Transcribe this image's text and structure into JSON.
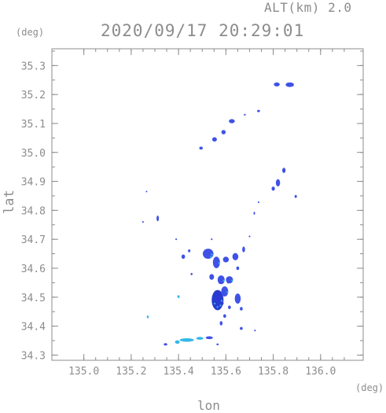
{
  "header": {
    "altitude_label": "ALT(km) 2.0",
    "timestamp": "2020/09/17 20:29:01"
  },
  "chart_data": {
    "type": "scatter",
    "title": "2020/09/17 20:29:01",
    "subtitle": "ALT(km) 2.0",
    "xlabel": "lon",
    "ylabel": "lat",
    "x_unit": "(deg)",
    "y_unit": "(deg)",
    "xlim": [
      134.865,
      136.18
    ],
    "ylim": [
      34.282,
      35.358
    ],
    "x_ticks": [
      135.0,
      135.2,
      135.4,
      135.6,
      135.8,
      136.0
    ],
    "x_tick_labels": [
      "135.0",
      "135.2",
      "135.4",
      "135.6",
      "135.8",
      "136.0"
    ],
    "y_ticks": [
      34.3,
      34.4,
      34.5,
      34.6,
      34.7,
      34.8,
      34.9,
      35.0,
      35.1,
      35.2,
      35.3
    ],
    "y_tick_labels": [
      "34.3",
      "34.4",
      "34.5",
      "34.6",
      "34.7",
      "34.8",
      "34.9",
      "35.0",
      "35.1",
      "35.2",
      "35.3"
    ],
    "grid": false,
    "colors": {
      "frame": "#8c8c8c",
      "echo_blue": "#3f52e6",
      "echo_dark": "#2a3ad0",
      "echo_cyan": "#35b8e8"
    },
    "echoes": [
      {
        "lon": 135.815,
        "lat": 35.235,
        "w": 0.025,
        "h": 0.014,
        "color": "blue"
      },
      {
        "lon": 135.87,
        "lat": 35.234,
        "w": 0.035,
        "h": 0.016,
        "color": "blue"
      },
      {
        "lon": 135.738,
        "lat": 35.143,
        "w": 0.012,
        "h": 0.008,
        "color": "blue"
      },
      {
        "lon": 135.68,
        "lat": 35.13,
        "w": 0.008,
        "h": 0.006,
        "color": "blue"
      },
      {
        "lon": 135.625,
        "lat": 35.108,
        "w": 0.025,
        "h": 0.014,
        "color": "blue"
      },
      {
        "lon": 135.59,
        "lat": 35.07,
        "w": 0.018,
        "h": 0.015,
        "color": "blue"
      },
      {
        "lon": 135.552,
        "lat": 35.045,
        "w": 0.02,
        "h": 0.015,
        "color": "blue"
      },
      {
        "lon": 135.495,
        "lat": 35.015,
        "w": 0.015,
        "h": 0.01,
        "color": "blue"
      },
      {
        "lon": 135.845,
        "lat": 34.938,
        "w": 0.014,
        "h": 0.018,
        "color": "blue"
      },
      {
        "lon": 135.82,
        "lat": 34.895,
        "w": 0.018,
        "h": 0.025,
        "color": "blue"
      },
      {
        "lon": 135.8,
        "lat": 34.875,
        "w": 0.014,
        "h": 0.014,
        "color": "blue"
      },
      {
        "lon": 135.895,
        "lat": 34.848,
        "w": 0.01,
        "h": 0.01,
        "color": "blue"
      },
      {
        "lon": 135.738,
        "lat": 34.828,
        "w": 0.006,
        "h": 0.006,
        "color": "blue"
      },
      {
        "lon": 135.72,
        "lat": 34.79,
        "w": 0.006,
        "h": 0.01,
        "color": "blue"
      },
      {
        "lon": 135.312,
        "lat": 34.772,
        "w": 0.01,
        "h": 0.02,
        "color": "blue"
      },
      {
        "lon": 135.25,
        "lat": 34.76,
        "w": 0.006,
        "h": 0.006,
        "color": "blue"
      },
      {
        "lon": 135.265,
        "lat": 34.865,
        "w": 0.004,
        "h": 0.004,
        "color": "blue"
      },
      {
        "lon": 135.39,
        "lat": 34.7,
        "w": 0.006,
        "h": 0.006,
        "color": "blue"
      },
      {
        "lon": 135.54,
        "lat": 34.7,
        "w": 0.006,
        "h": 0.006,
        "color": "blue"
      },
      {
        "lon": 135.7,
        "lat": 34.71,
        "w": 0.006,
        "h": 0.006,
        "color": "blue"
      },
      {
        "lon": 135.42,
        "lat": 34.64,
        "w": 0.015,
        "h": 0.015,
        "color": "blue"
      },
      {
        "lon": 135.445,
        "lat": 34.66,
        "w": 0.01,
        "h": 0.01,
        "color": "blue"
      },
      {
        "lon": 135.525,
        "lat": 34.65,
        "w": 0.045,
        "h": 0.035,
        "color": "blue"
      },
      {
        "lon": 135.56,
        "lat": 34.62,
        "w": 0.03,
        "h": 0.04,
        "color": "blue"
      },
      {
        "lon": 135.6,
        "lat": 34.63,
        "w": 0.025,
        "h": 0.02,
        "color": "blue"
      },
      {
        "lon": 135.64,
        "lat": 34.64,
        "w": 0.025,
        "h": 0.025,
        "color": "blue"
      },
      {
        "lon": 135.675,
        "lat": 34.665,
        "w": 0.012,
        "h": 0.02,
        "color": "blue"
      },
      {
        "lon": 135.58,
        "lat": 34.56,
        "w": 0.03,
        "h": 0.03,
        "color": "blue"
      },
      {
        "lon": 135.615,
        "lat": 34.56,
        "w": 0.03,
        "h": 0.025,
        "color": "blue"
      },
      {
        "lon": 135.54,
        "lat": 34.57,
        "w": 0.02,
        "h": 0.02,
        "color": "blue"
      },
      {
        "lon": 135.65,
        "lat": 34.6,
        "w": 0.012,
        "h": 0.012,
        "color": "blue"
      },
      {
        "lon": 135.455,
        "lat": 34.58,
        "w": 0.008,
        "h": 0.008,
        "color": "blue"
      },
      {
        "lon": 135.565,
        "lat": 34.49,
        "w": 0.05,
        "h": 0.07,
        "color": "dark"
      },
      {
        "lon": 135.595,
        "lat": 34.52,
        "w": 0.03,
        "h": 0.035,
        "color": "blue"
      },
      {
        "lon": 135.65,
        "lat": 34.495,
        "w": 0.025,
        "h": 0.035,
        "color": "blue"
      },
      {
        "lon": 135.665,
        "lat": 34.46,
        "w": 0.012,
        "h": 0.012,
        "color": "blue"
      },
      {
        "lon": 135.595,
        "lat": 34.435,
        "w": 0.012,
        "h": 0.012,
        "color": "blue"
      },
      {
        "lon": 135.58,
        "lat": 34.41,
        "w": 0.012,
        "h": 0.015,
        "color": "blue"
      },
      {
        "lon": 135.615,
        "lat": 34.465,
        "w": 0.012,
        "h": 0.012,
        "color": "blue"
      },
      {
        "lon": 135.665,
        "lat": 34.392,
        "w": 0.012,
        "h": 0.01,
        "color": "blue"
      },
      {
        "lon": 135.723,
        "lat": 34.385,
        "w": 0.006,
        "h": 0.006,
        "color": "blue"
      },
      {
        "lon": 135.4,
        "lat": 34.502,
        "w": 0.01,
        "h": 0.01,
        "color": "cyan"
      },
      {
        "lon": 135.27,
        "lat": 34.432,
        "w": 0.008,
        "h": 0.01,
        "color": "cyan"
      },
      {
        "lon": 135.435,
        "lat": 34.352,
        "w": 0.06,
        "h": 0.012,
        "color": "cyan"
      },
      {
        "lon": 135.395,
        "lat": 34.345,
        "w": 0.02,
        "h": 0.012,
        "color": "cyan"
      },
      {
        "lon": 135.49,
        "lat": 34.358,
        "w": 0.03,
        "h": 0.01,
        "color": "cyan"
      },
      {
        "lon": 135.53,
        "lat": 34.36,
        "w": 0.03,
        "h": 0.01,
        "color": "blue"
      },
      {
        "lon": 135.345,
        "lat": 34.337,
        "w": 0.015,
        "h": 0.008,
        "color": "blue"
      },
      {
        "lon": 135.565,
        "lat": 34.337,
        "w": 0.01,
        "h": 0.006,
        "color": "blue"
      }
    ]
  }
}
